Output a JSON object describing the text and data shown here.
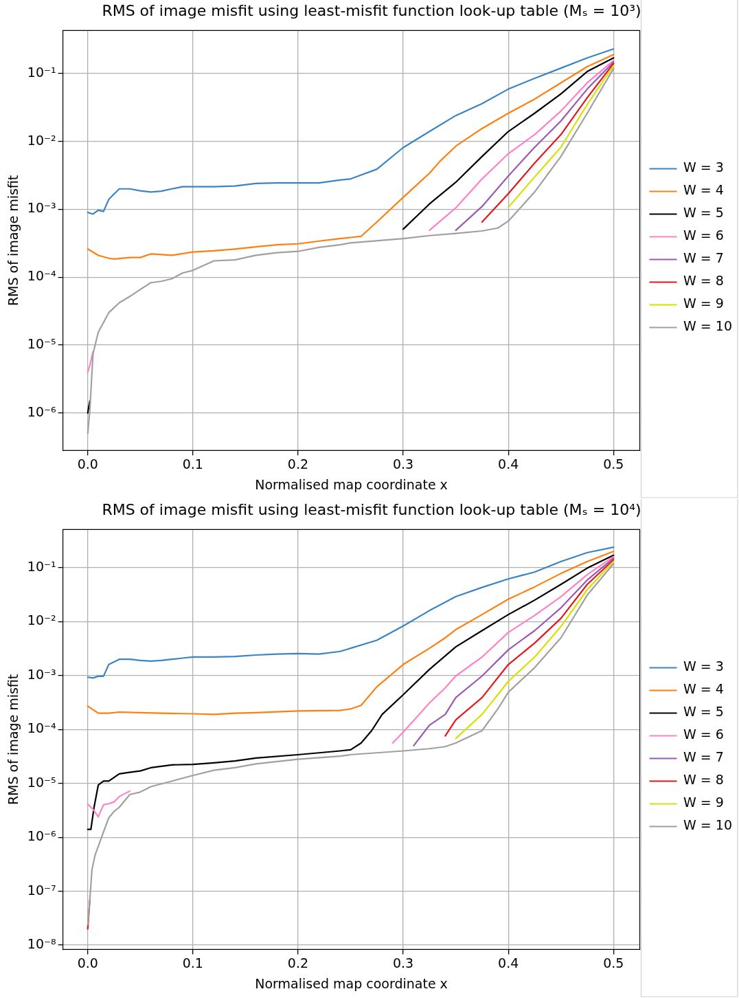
{
  "chart_data": [
    {
      "type": "line",
      "title": "RMS of image misfit using least-misfit function look-up table (Mₛ = 10³)",
      "xlabel": "Normalised map coordinate x",
      "ylabel": "RMS of image misfit",
      "log": "y",
      "grid": true,
      "legend": "right",
      "xlim": [
        -0.0236,
        0.525
      ],
      "xticks": [
        {
          "value": 0,
          "label": "0.0"
        },
        {
          "value": 0.1,
          "label": "0.1"
        },
        {
          "value": 0.2,
          "label": "0.2"
        },
        {
          "value": 0.3,
          "label": "0.3"
        },
        {
          "value": 0.4,
          "label": "0.4"
        },
        {
          "value": 0.5,
          "label": "0.5"
        }
      ],
      "ylim": [
        2.8e-07,
        0.43
      ],
      "yticks": [
        {
          "value": 1e-06,
          "label": "10⁻⁶"
        },
        {
          "value": 1e-05,
          "label": "10⁻⁵"
        },
        {
          "value": 0.0001,
          "label": "10⁻⁴"
        },
        {
          "value": 0.001,
          "label": "10⁻³"
        },
        {
          "value": 0.01,
          "label": "10⁻²"
        },
        {
          "value": 0.1,
          "label": "10⁻¹"
        }
      ],
      "series": [
        {
          "name": "W = 3",
          "color": "#3a84c4",
          "x": [
            0,
            0.005,
            0.01,
            0.015,
            0.02,
            0.03,
            0.04,
            0.05,
            0.06,
            0.07,
            0.08,
            0.09,
            0.1,
            0.12,
            0.14,
            0.16,
            0.18,
            0.2,
            0.22,
            0.24,
            0.25,
            0.275,
            0.3,
            0.325,
            0.35,
            0.375,
            0.4,
            0.425,
            0.45,
            0.475,
            0.5
          ],
          "values": [
            0.0009,
            0.00085,
            0.00097,
            0.00093,
            0.0014,
            0.002,
            0.002,
            0.00187,
            0.0018,
            0.00185,
            0.002,
            0.00215,
            0.00215,
            0.00215,
            0.0022,
            0.0024,
            0.00245,
            0.00245,
            0.00245,
            0.0027,
            0.0028,
            0.0039,
            0.0081,
            0.014,
            0.024,
            0.036,
            0.059,
            0.085,
            0.12,
            0.17,
            0.23
          ]
        },
        {
          "name": "W = 4",
          "color": "#ff7f0e",
          "x": [
            0,
            0.01,
            0.02,
            0.025,
            0.04,
            0.05,
            0.06,
            0.08,
            0.1,
            0.12,
            0.14,
            0.16,
            0.18,
            0.2,
            0.22,
            0.24,
            0.26,
            0.275,
            0.3,
            0.325,
            0.335,
            0.35,
            0.375,
            0.4,
            0.425,
            0.45,
            0.475,
            0.5
          ],
          "values": [
            0.00026,
            0.00021,
            0.00019,
            0.000185,
            0.000195,
            0.000195,
            0.00022,
            0.00021,
            0.000235,
            0.000245,
            0.00026,
            0.00028,
            0.0003,
            0.00031,
            0.00034,
            0.00037,
            0.0004,
            0.00065,
            0.0015,
            0.0034,
            0.0051,
            0.0085,
            0.0155,
            0.026,
            0.042,
            0.073,
            0.126,
            0.19
          ]
        },
        {
          "name": "W = 5",
          "color": "#000000",
          "x": [
            0,
            0.002,
            0.005,
            0.3,
            0.325,
            0.35,
            0.375,
            0.4,
            0.425,
            0.45,
            0.475,
            0.5
          ],
          "values": [
            1e-06,
            1.5e-06,
            null,
            0.00051,
            0.0012,
            0.0025,
            0.006,
            0.014,
            0.026,
            0.05,
            0.107,
            0.17
          ]
        },
        {
          "name": "W = 6",
          "color": "#ff80c8",
          "x": [
            0,
            0.002,
            0.005,
            0.01,
            0.325,
            0.35,
            0.375,
            0.4,
            0.425,
            0.45,
            0.475,
            0.5
          ],
          "values": [
            4e-06,
            5e-06,
            8e-06,
            null,
            0.00049,
            0.00105,
            0.0028,
            0.0066,
            0.0126,
            0.028,
            0.073,
            0.155
          ]
        },
        {
          "name": "W = 7",
          "color": "#9a59b5",
          "x": [
            0.35,
            0.375,
            0.4,
            0.425,
            0.45,
            0.475,
            0.5
          ],
          "values": [
            0.00049,
            0.0011,
            0.0031,
            0.0082,
            0.02,
            0.059,
            0.148
          ]
        },
        {
          "name": "W = 8",
          "color": "#e8141c",
          "x": [
            0.375,
            0.4,
            0.425,
            0.45,
            0.475,
            0.5
          ],
          "values": [
            0.00065,
            0.0017,
            0.0048,
            0.0126,
            0.044,
            0.14
          ]
        },
        {
          "name": "W = 9",
          "color": "#d8e000",
          "x": [
            0.4,
            0.425,
            0.45,
            0.475,
            0.5
          ],
          "values": [
            0.00107,
            0.003,
            0.0082,
            0.035,
            0.13
          ]
        },
        {
          "name": "W = 10",
          "color": "#a0a0a0",
          "x": [
            0,
            0.002,
            0.005,
            0.01,
            0.02,
            0.03,
            0.04,
            0.05,
            0.06,
            0.07,
            0.08,
            0.09,
            0.1,
            0.12,
            0.14,
            0.16,
            0.18,
            0.2,
            0.22,
            0.24,
            0.25,
            0.3,
            0.325,
            0.35,
            0.375,
            0.39,
            0.4,
            0.425,
            0.45,
            0.475,
            0.5
          ],
          "values": [
            5e-07,
            1.1e-06,
            7.4e-06,
            1.55e-05,
            3e-05,
            4.2e-05,
            5.2e-05,
            6.6e-05,
            8.3e-05,
            8.7e-05,
            9.5e-05,
            0.000115,
            0.000126,
            0.000174,
            0.00018,
            0.00021,
            0.00023,
            0.00024,
            0.000275,
            0.0003,
            0.00032,
            0.00037,
            0.00041,
            0.00044,
            0.00048,
            0.00053,
            0.00067,
            0.0018,
            0.006,
            0.026,
            0.118
          ]
        }
      ]
    },
    {
      "type": "line",
      "title": "RMS of image misfit using least-misfit function look-up table (Mₛ = 10⁴)",
      "xlabel": "Normalised map coordinate x",
      "ylabel": "RMS of image misfit",
      "log": "y",
      "grid": true,
      "legend": "right",
      "xlim": [
        -0.0236,
        0.525
      ],
      "xticks": [
        {
          "value": 0,
          "label": "0.0"
        },
        {
          "value": 0.1,
          "label": "0.1"
        },
        {
          "value": 0.2,
          "label": "0.2"
        },
        {
          "value": 0.3,
          "label": "0.3"
        },
        {
          "value": 0.4,
          "label": "0.4"
        },
        {
          "value": 0.5,
          "label": "0.5"
        }
      ],
      "ylim": [
        8.3e-09,
        0.51
      ],
      "yticks": [
        {
          "value": 1e-08,
          "label": "10⁻⁸"
        },
        {
          "value": 1e-07,
          "label": "10⁻⁷"
        },
        {
          "value": 1e-06,
          "label": "10⁻⁶"
        },
        {
          "value": 1e-05,
          "label": "10⁻⁵"
        },
        {
          "value": 0.0001,
          "label": "10⁻⁴"
        },
        {
          "value": 0.001,
          "label": "10⁻³"
        },
        {
          "value": 0.01,
          "label": "10⁻²"
        },
        {
          "value": 0.1,
          "label": "10⁻¹"
        }
      ],
      "series": [
        {
          "name": "W = 3",
          "color": "#3a84c4",
          "x": [
            0,
            0.005,
            0.01,
            0.015,
            0.02,
            0.03,
            0.04,
            0.05,
            0.06,
            0.07,
            0.08,
            0.09,
            0.1,
            0.12,
            0.14,
            0.16,
            0.18,
            0.2,
            0.22,
            0.24,
            0.25,
            0.275,
            0.3,
            0.325,
            0.35,
            0.375,
            0.4,
            0.425,
            0.45,
            0.475,
            0.5
          ],
          "values": [
            0.00093,
            0.0009,
            0.00097,
            0.00097,
            0.0016,
            0.002,
            0.002,
            0.0019,
            0.00185,
            0.0019,
            0.002,
            0.0021,
            0.0022,
            0.0022,
            0.00225,
            0.0024,
            0.0025,
            0.00255,
            0.0025,
            0.0028,
            0.0032,
            0.0045,
            0.0083,
            0.016,
            0.029,
            0.043,
            0.062,
            0.083,
            0.13,
            0.19,
            0.24
          ]
        },
        {
          "name": "W = 4",
          "color": "#ff7f0e",
          "x": [
            0,
            0.01,
            0.02,
            0.03,
            0.05,
            0.07,
            0.1,
            0.12,
            0.14,
            0.16,
            0.2,
            0.24,
            0.25,
            0.26,
            0.275,
            0.3,
            0.325,
            0.34,
            0.35,
            0.375,
            0.4,
            0.425,
            0.45,
            0.475,
            0.5
          ],
          "values": [
            0.00027,
            0.0002,
            0.0002,
            0.00021,
            0.000205,
            0.0002,
            0.000195,
            0.00019,
            0.0002,
            0.000205,
            0.00022,
            0.000225,
            0.00024,
            0.00028,
            0.00062,
            0.0016,
            0.0032,
            0.005,
            0.0071,
            0.0135,
            0.026,
            0.044,
            0.078,
            0.13,
            0.2
          ]
        },
        {
          "name": "W = 5",
          "color": "#000000",
          "x": [
            0,
            0.003,
            0.006,
            0.01,
            0.015,
            0.02,
            0.03,
            0.04,
            0.05,
            0.06,
            0.08,
            0.1,
            0.12,
            0.14,
            0.16,
            0.2,
            0.24,
            0.25,
            0.26,
            0.27,
            0.28,
            0.3,
            0.325,
            0.35,
            0.375,
            0.4,
            0.425,
            0.45,
            0.475,
            0.5
          ],
          "values": [
            1.4e-06,
            1.4e-06,
            3.6e-06,
            9.3e-06,
            1.1e-05,
            1.1e-05,
            1.5e-05,
            1.6e-05,
            1.7e-05,
            1.95e-05,
            2.2e-05,
            2.25e-05,
            2.4e-05,
            2.6e-05,
            2.95e-05,
            3.4e-05,
            4e-05,
            4.2e-05,
            5.6e-05,
            9.5e-05,
            0.00019,
            0.00044,
            0.0013,
            0.0034,
            0.0068,
            0.0135,
            0.025,
            0.049,
            0.098,
            0.17
          ]
        },
        {
          "name": "W = 6",
          "color": "#ff80c8",
          "x": [
            0,
            0.005,
            0.01,
            0.015,
            0.02,
            0.025,
            0.03,
            0.04,
            0.05,
            0.29,
            0.3,
            0.325,
            0.34,
            0.35,
            0.375,
            0.4,
            0.425,
            0.45,
            0.475,
            0.5
          ],
          "values": [
            4.1e-06,
            3.3e-06,
            2.4e-06,
            4e-06,
            4.2e-06,
            4.5e-06,
            5.7e-06,
            7.2e-06,
            null,
            5.6e-05,
            8.9e-05,
            0.00031,
            0.00059,
            0.00098,
            0.0022,
            0.0063,
            0.013,
            0.029,
            0.074,
            0.16
          ]
        },
        {
          "name": "W = 7",
          "color": "#9a59b5",
          "x": [
            0.31,
            0.325,
            0.34,
            0.35,
            0.375,
            0.4,
            0.425,
            0.45,
            0.475,
            0.5
          ],
          "values": [
            5e-05,
            0.00012,
            0.00019,
            0.00039,
            0.00098,
            0.003,
            0.0068,
            0.018,
            0.059,
            0.15
          ]
        },
        {
          "name": "W = 8",
          "color": "#e8141c",
          "x": [
            0,
            0.002,
            0.004,
            0.34,
            0.35,
            0.375,
            0.4,
            0.425,
            0.45,
            0.475,
            0.5
          ],
          "values": [
            2e-08,
            6.9e-08,
            null,
            7.6e-05,
            0.00015,
            0.00039,
            0.0016,
            0.004,
            0.0115,
            0.049,
            0.14
          ]
        },
        {
          "name": "W = 9",
          "color": "#d8e000",
          "x": [
            0.35,
            0.375,
            0.4,
            0.425,
            0.45,
            0.475,
            0.5
          ],
          "values": [
            6.8e-05,
            0.00019,
            0.00078,
            0.0022,
            0.0081,
            0.039,
            0.13
          ]
        },
        {
          "name": "W = 10",
          "color": "#a0a0a0",
          "x": [
            0,
            0.002,
            0.004,
            0.007,
            0.01,
            0.015,
            0.02,
            0.025,
            0.03,
            0.04,
            0.05,
            0.06,
            0.08,
            0.1,
            0.12,
            0.14,
            0.16,
            0.2,
            0.24,
            0.25,
            0.3,
            0.325,
            0.34,
            0.35,
            0.375,
            0.39,
            0.4,
            0.425,
            0.45,
            0.475,
            0.5
          ],
          "values": [
            2.4e-08,
            6.9e-08,
            2.5e-07,
            4.7e-07,
            6.8e-07,
            1.26e-06,
            2.3e-06,
            3e-06,
            3.6e-06,
            6.2e-06,
            6.9e-06,
            8.7e-06,
            1.1e-05,
            1.4e-05,
            1.75e-05,
            1.95e-05,
            2.3e-05,
            2.8e-05,
            3.2e-05,
            3.4e-05,
            4e-05,
            4.4e-05,
            4.8e-05,
            5.6e-05,
            9.5e-05,
            0.00024,
            0.00049,
            0.0014,
            0.005,
            0.031,
            0.118
          ]
        }
      ]
    }
  ]
}
